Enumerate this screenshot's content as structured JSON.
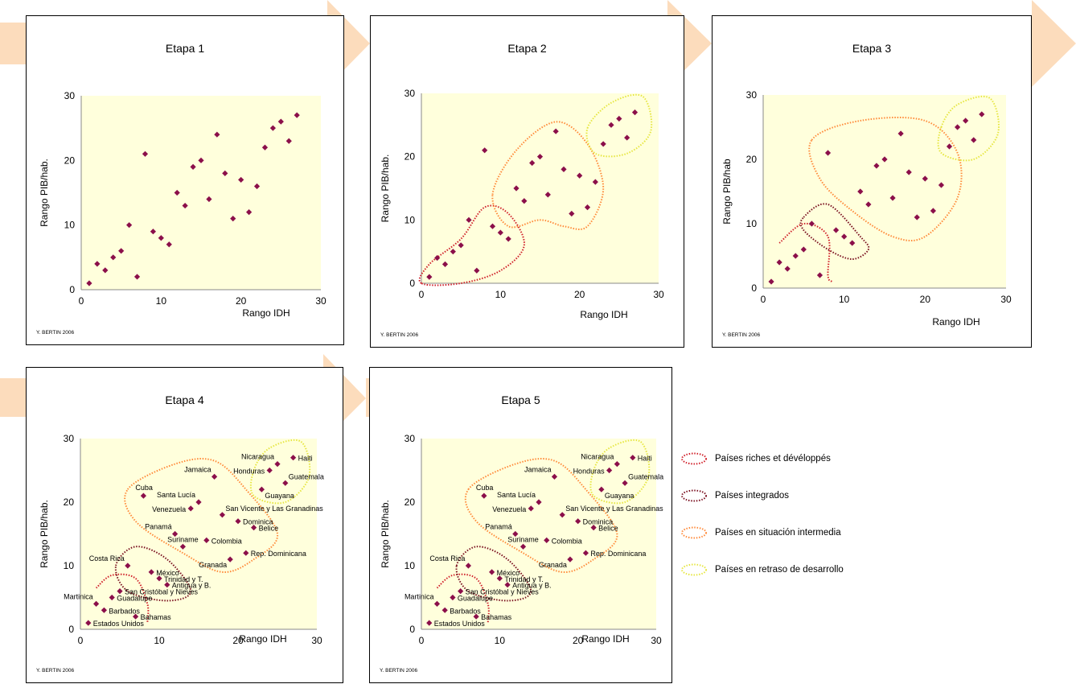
{
  "colors": {
    "arrow": "#fcdcbc",
    "plot_bg": "#ffffdc",
    "marker": "#8b0f4a",
    "rich": "#d0202a",
    "integrated": "#7a1020",
    "intermediate": "#ff8a3a",
    "delay": "#e6e640"
  },
  "credit": "Y. BERTIN 2006",
  "xlabel": "Rango IDH",
  "legend": [
    {
      "label": "Países riches et dévéloppés",
      "color_key": "rich"
    },
    {
      "label": "Países integrados",
      "color_key": "integrated"
    },
    {
      "label": "Países en situación intermedia",
      "color_key": "intermediate"
    },
    {
      "label": "Países en retraso de desarrollo",
      "color_key": "delay"
    }
  ],
  "chart_data": [
    {
      "type": "scatter",
      "title": "Etapa 1",
      "xlabel": "Rango IDH",
      "ylabel": "Rango PIB/hab.",
      "xlim": [
        0,
        30
      ],
      "ylim": [
        0,
        30
      ],
      "x_ticks": [
        "0",
        "10",
        "20",
        "30"
      ],
      "y_ticks": [
        "0",
        "10",
        "20",
        "30"
      ],
      "show_labels": false,
      "groups": []
    },
    {
      "type": "scatter",
      "title": "Etapa 2",
      "xlabel": "Rango IDH",
      "ylabel": "Rango PIB/hab.",
      "xlim": [
        0,
        30
      ],
      "ylim": [
        0,
        30
      ],
      "x_ticks": [
        "0",
        "10",
        "20",
        "30"
      ],
      "y_ticks": [
        "0",
        "10",
        "20",
        "30"
      ],
      "show_labels": false,
      "groups": [
        {
          "color_key": "rich",
          "outline": [
            [
              0,
              0
            ],
            [
              1,
              3
            ],
            [
              5,
              7
            ],
            [
              8,
              12
            ],
            [
              11,
              11
            ],
            [
              13,
              6
            ],
            [
              10,
              2
            ],
            [
              5,
              0
            ]
          ]
        },
        {
          "color_key": "intermediate",
          "outline": [
            [
              9,
              14
            ],
            [
              12,
              21
            ],
            [
              17,
              25.5
            ],
            [
              21,
              22
            ],
            [
              23,
              15
            ],
            [
              21,
              9
            ],
            [
              18,
              9
            ],
            [
              15,
              10
            ],
            [
              11,
              9
            ]
          ]
        },
        {
          "color_key": "delay",
          "outline": [
            [
              21,
              24.5
            ],
            [
              24,
              28.5
            ],
            [
              28,
              29.5
            ],
            [
              29,
              24
            ],
            [
              26,
              20.5
            ],
            [
              22,
              20.5
            ]
          ]
        }
      ]
    },
    {
      "type": "scatter",
      "title": "Etapa 3",
      "xlabel": "Rango IDH",
      "ylabel": "Rango PIB/hab",
      "xlim": [
        0,
        30
      ],
      "ylim": [
        0,
        30
      ],
      "x_ticks": [
        "0",
        "10",
        "20",
        "30"
      ],
      "y_ticks": [
        "0",
        "10",
        "20",
        "30"
      ],
      "show_labels": false,
      "groups": [
        {
          "color_key": "rich",
          "outline": [
            [
              2,
              7
            ],
            [
              5,
              10
            ],
            [
              8,
              8
            ],
            [
              8,
              2
            ],
            [
              8.5,
              1
            ]
          ],
          "open": true
        },
        {
          "color_key": "integrated",
          "outline": [
            [
              5,
              11
            ],
            [
              8,
              13
            ],
            [
              12,
              8
            ],
            [
              13,
              6
            ],
            [
              11,
              4.5
            ],
            [
              8,
              6
            ],
            [
              5,
              9
            ]
          ]
        },
        {
          "color_key": "intermediate",
          "outline": [
            [
              6,
              23
            ],
            [
              12,
              26
            ],
            [
              20,
              26
            ],
            [
              24,
              21
            ],
            [
              24,
              14
            ],
            [
              20,
              8
            ],
            [
              16,
              8
            ],
            [
              11,
              12
            ],
            [
              7,
              17
            ]
          ]
        },
        {
          "color_key": "delay",
          "outline": [
            [
              22,
              25
            ],
            [
              24,
              28.5
            ],
            [
              28,
              29.5
            ],
            [
              29,
              24
            ],
            [
              26,
              20
            ],
            [
              22,
              21
            ]
          ]
        }
      ]
    },
    {
      "type": "scatter",
      "title": "Etapa 4",
      "xlabel": "Rango IDH",
      "ylabel": "Rango PIB/hab.",
      "xlim": [
        0,
        30
      ],
      "ylim": [
        0,
        30
      ],
      "x_ticks": [
        "0",
        "10",
        "20",
        "30"
      ],
      "y_ticks": [
        "0",
        "10",
        "20",
        "30"
      ],
      "show_labels": true,
      "groups": [
        {
          "color_key": "rich",
          "outline": [
            [
              2,
              6.5
            ],
            [
              4,
              8.5
            ],
            [
              7,
              8
            ],
            [
              8.5,
              4
            ],
            [
              8.5,
              1
            ]
          ],
          "open": true
        },
        {
          "color_key": "integrated",
          "outline": [
            [
              4.5,
              10
            ],
            [
              7,
              13
            ],
            [
              11,
              11
            ],
            [
              14,
              6
            ],
            [
              11,
              4.5
            ],
            [
              6,
              6
            ]
          ]
        },
        {
          "color_key": "intermediate",
          "outline": [
            [
              6,
              22
            ],
            [
              12,
              26
            ],
            [
              17,
              26.5
            ],
            [
              21,
              22
            ],
            [
              25,
              15
            ],
            [
              22,
              11
            ],
            [
              18,
              9
            ],
            [
              13,
              12
            ],
            [
              7,
              17
            ]
          ]
        },
        {
          "color_key": "delay",
          "outline": [
            [
              22,
              25
            ],
            [
              24,
              28.5
            ],
            [
              28,
              29.5
            ],
            [
              29,
              24
            ],
            [
              26,
              20
            ],
            [
              22,
              21
            ]
          ]
        }
      ]
    },
    {
      "type": "scatter",
      "title": "Etapa 5",
      "xlabel": "Rango IDH",
      "ylabel": "Rango PIB/hab.",
      "xlim": [
        0,
        30
      ],
      "ylim": [
        0,
        30
      ],
      "x_ticks": [
        "0",
        "10",
        "20",
        "30"
      ],
      "y_ticks": [
        "0",
        "10",
        "20",
        "30"
      ],
      "show_labels": true,
      "groups": [
        {
          "color_key": "rich",
          "outline": [
            [
              2,
              6.5
            ],
            [
              4,
              8.5
            ],
            [
              7,
              8
            ],
            [
              8.5,
              4
            ],
            [
              8.5,
              1
            ]
          ],
          "open": true
        },
        {
          "color_key": "integrated",
          "outline": [
            [
              4.5,
              10
            ],
            [
              7,
              13
            ],
            [
              11,
              11
            ],
            [
              14,
              6
            ],
            [
              11,
              4.5
            ],
            [
              6,
              6
            ]
          ]
        },
        {
          "color_key": "intermediate",
          "outline": [
            [
              6,
              22
            ],
            [
              12,
              26
            ],
            [
              17,
              26.5
            ],
            [
              21,
              22
            ],
            [
              25,
              15
            ],
            [
              22,
              11
            ],
            [
              18,
              9
            ],
            [
              13,
              12
            ],
            [
              7,
              17
            ]
          ]
        },
        {
          "color_key": "delay",
          "outline": [
            [
              22,
              25
            ],
            [
              24,
              28.5
            ],
            [
              28,
              29.5
            ],
            [
              29,
              24
            ],
            [
              26,
              20
            ],
            [
              22,
              21
            ]
          ]
        }
      ]
    }
  ],
  "points": [
    {
      "x": 1,
      "y": 1,
      "label": "Estados Unidos",
      "anchor": "r"
    },
    {
      "x": 2,
      "y": 4,
      "label": "Martinica",
      "anchor": "l-up"
    },
    {
      "x": 3,
      "y": 3,
      "label": "Barbados",
      "anchor": "r"
    },
    {
      "x": 4,
      "y": 5,
      "label": "Guadalupe",
      "anchor": "r"
    },
    {
      "x": 5,
      "y": 6,
      "label": "San Cristóbal y Nieves",
      "anchor": "r"
    },
    {
      "x": 6,
      "y": 10,
      "label": "Costa Rica",
      "anchor": "l-up"
    },
    {
      "x": 7,
      "y": 2,
      "label": "Bahamas",
      "anchor": "r"
    },
    {
      "x": 8,
      "y": 21,
      "label": "Cuba",
      "anchor": "up"
    },
    {
      "x": 9,
      "y": 9,
      "label": "México",
      "anchor": "r"
    },
    {
      "x": 10,
      "y": 8,
      "label": "Trinidad y T.",
      "anchor": "r"
    },
    {
      "x": 11,
      "y": 7,
      "label": "Antigua y B.",
      "anchor": "r"
    },
    {
      "x": 12,
      "y": 15,
      "label": "Panamá",
      "anchor": "l-up"
    },
    {
      "x": 13,
      "y": 13,
      "label": "Suriname",
      "anchor": "mixed"
    },
    {
      "x": 14,
      "y": 19,
      "label": "Venezuela",
      "anchor": "l"
    },
    {
      "x": 15,
      "y": 20,
      "label": "Santa Lucía",
      "anchor": "l-up"
    },
    {
      "x": 16,
      "y": 14,
      "label": "Colombia",
      "anchor": "r"
    },
    {
      "x": 17,
      "y": 24,
      "label": "Jamaica",
      "anchor": "l-up"
    },
    {
      "x": 18,
      "y": 18,
      "label": "San Vicente y Las Granadinas",
      "anchor": "r-up"
    },
    {
      "x": 19,
      "y": 11,
      "label": "Granada",
      "anchor": "l-down"
    },
    {
      "x": 20,
      "y": 17,
      "label": "Dominica",
      "anchor": "r"
    },
    {
      "x": 21,
      "y": 12,
      "label": "Rep. Dominicana",
      "anchor": "r"
    },
    {
      "x": 22,
      "y": 16,
      "label": "Belice",
      "anchor": "r"
    },
    {
      "x": 23,
      "y": 22,
      "label": "Guayana",
      "anchor": "r-down"
    },
    {
      "x": 24,
      "y": 25,
      "label": "Honduras",
      "anchor": "l"
    },
    {
      "x": 25,
      "y": 26,
      "label": "Nicaragua",
      "anchor": "l-up"
    },
    {
      "x": 26,
      "y": 23,
      "label": "Guatemala",
      "anchor": "r-up"
    },
    {
      "x": 27,
      "y": 27,
      "label": "Haiti",
      "anchor": "r"
    }
  ]
}
